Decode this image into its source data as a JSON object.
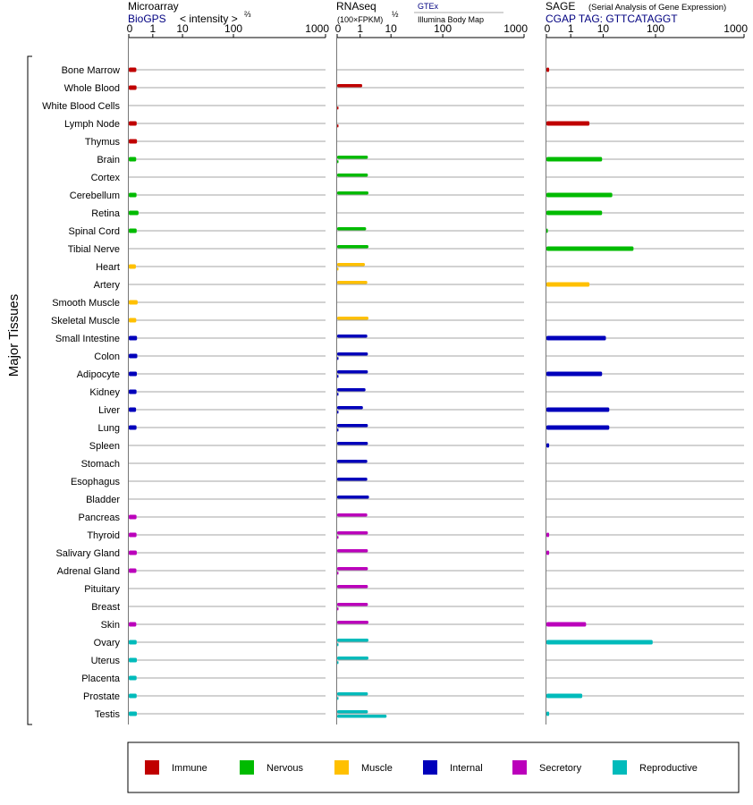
{
  "chart_data": {
    "type": "bar",
    "ylabel": "Major Tissues",
    "categories": [
      "Bone Marrow",
      "Whole Blood",
      "White Blood Cells",
      "Lymph Node",
      "Thymus",
      "Brain",
      "Cortex",
      "Cerebellum",
      "Retina",
      "Spinal Cord",
      "Tibial Nerve",
      "Heart",
      "Artery",
      "Smooth Muscle",
      "Skeletal Muscle",
      "Small Intestine",
      "Colon",
      "Adipocyte",
      "Kidney",
      "Liver",
      "Lung",
      "Spleen",
      "Stomach",
      "Esophagus",
      "Bladder",
      "Pancreas",
      "Thyroid",
      "Salivary Gland",
      "Adrenal Gland",
      "Pituitary",
      "Breast",
      "Skin",
      "Ovary",
      "Uterus",
      "Placenta",
      "Prostate",
      "Testis"
    ],
    "groups": [
      "Immune",
      "Immune",
      "Immune",
      "Immune",
      "Immune",
      "Nervous",
      "Nervous",
      "Nervous",
      "Nervous",
      "Nervous",
      "Nervous",
      "Muscle",
      "Muscle",
      "Muscle",
      "Muscle",
      "Internal",
      "Internal",
      "Internal",
      "Internal",
      "Internal",
      "Internal",
      "Internal",
      "Internal",
      "Internal",
      "Internal",
      "Secretory",
      "Secretory",
      "Secretory",
      "Secretory",
      "Secretory",
      "Secretory",
      "Secretory",
      "Reproductive",
      "Reproductive",
      "Reproductive",
      "Reproductive",
      "Reproductive"
    ],
    "legend": [
      {
        "name": "Immune",
        "color": "#c00000"
      },
      {
        "name": "Nervous",
        "color": "#00bb00"
      },
      {
        "name": "Muscle",
        "color": "#ffc000"
      },
      {
        "name": "Internal",
        "color": "#0000bb"
      },
      {
        "name": "Secretory",
        "color": "#bb00bb"
      },
      {
        "name": "Reproductive",
        "color": "#00bbbb"
      }
    ],
    "legend_position": "bottom",
    "panels": [
      {
        "title": "Microarray",
        "subtitle": "BioGPS",
        "subtitle_color": "#000080",
        "scale_label": "< intensity >",
        "scale_exp": "⅔",
        "scale": "power-2/3",
        "ticks": [
          "0",
          "1",
          "10",
          "100",
          "1000"
        ],
        "xlim": [
          0,
          1000
        ],
        "values": [
          7.5,
          7.8,
          null,
          8.0,
          8.5,
          7.3,
          null,
          7.8,
          11.0,
          8.0,
          null,
          6.8,
          null,
          9.5,
          7.4,
          8.6,
          9.0,
          8.3,
          7.8,
          7.1,
          7.8,
          null,
          null,
          null,
          null,
          7.8,
          7.8,
          8.2,
          7.6,
          null,
          null,
          7.4,
          8.0,
          8.3,
          7.9,
          8.0,
          8.3
        ]
      },
      {
        "title": "RNAseq",
        "subtitle": "(100×FPKM)",
        "subtitle_exp": "½",
        "scale": "sqrt",
        "source_a": "GTEx",
        "source_a_color": "#000080",
        "source_b": "Illumina Body Map",
        "ticks": [
          "0",
          "1",
          "10",
          "100",
          "1000"
        ],
        "xlim": [
          0,
          1000
        ],
        "values_a": [
          null,
          18,
          null,
          null,
          null,
          27,
          27,
          28,
          null,
          24,
          28,
          22,
          26,
          null,
          28,
          26,
          27,
          27,
          23,
          19,
          27,
          27,
          26,
          26,
          29,
          26,
          27,
          27,
          27,
          27,
          27,
          28,
          28,
          28,
          null,
          27,
          27
        ],
        "values_b": [
          null,
          null,
          0.05,
          0.05,
          null,
          0.03,
          null,
          null,
          null,
          null,
          null,
          0.03,
          null,
          null,
          null,
          null,
          0.05,
          0.03,
          0.03,
          0.05,
          0.05,
          null,
          null,
          null,
          null,
          null,
          0.03,
          null,
          0.05,
          null,
          0.05,
          null,
          0.03,
          0.05,
          null,
          0.03,
          70
        ]
      },
      {
        "title": "SAGE",
        "subtitle_note": "(Serial Analysis of Gene Expression)",
        "subtitle": "CGAP  TAG: GTTCATAGGT",
        "subtitle_color": "#000080",
        "scale": "log",
        "ticks": [
          "0",
          "1",
          "10",
          "100",
          "1000"
        ],
        "xlim": [
          0,
          1000
        ],
        "values": [
          0.1,
          null,
          null,
          3.5,
          null,
          6,
          null,
          9,
          6,
          0.05,
          20,
          null,
          3.5,
          null,
          null,
          7,
          null,
          6,
          null,
          8,
          8,
          0.1,
          null,
          null,
          null,
          null,
          0.1,
          0.1,
          null,
          null,
          null,
          3,
          40,
          null,
          null,
          2.5,
          0.1
        ]
      }
    ]
  }
}
